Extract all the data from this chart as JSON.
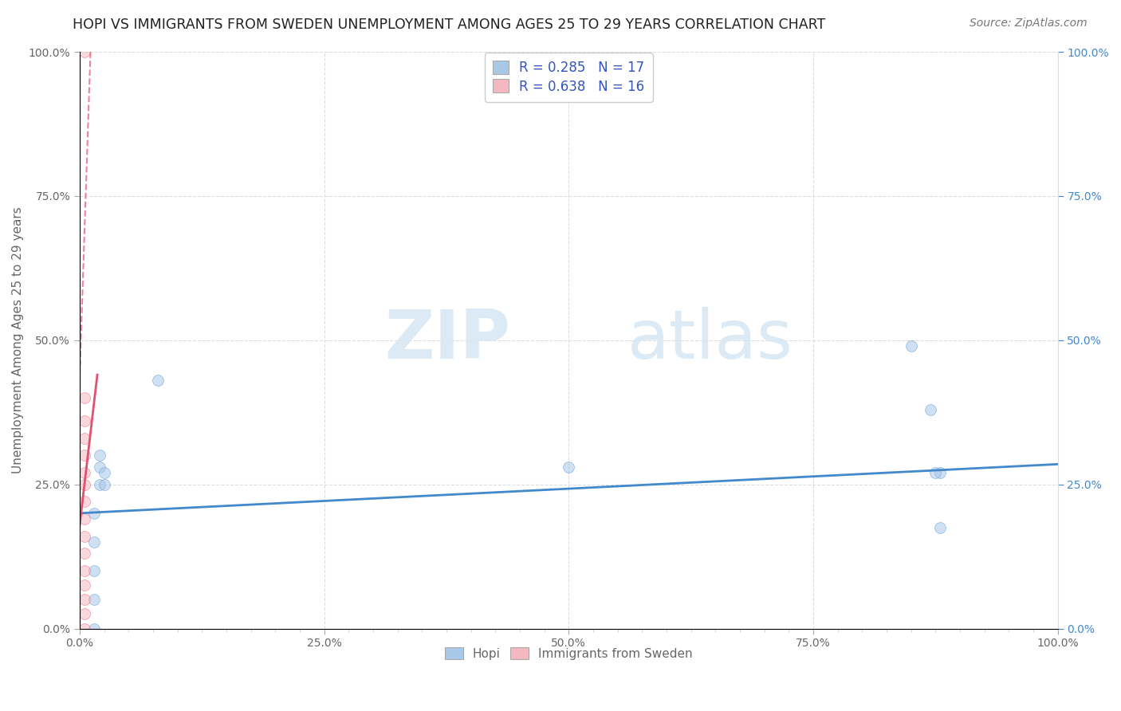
{
  "title": "HOPI VS IMMIGRANTS FROM SWEDEN UNEMPLOYMENT AMONG AGES 25 TO 29 YEARS CORRELATION CHART",
  "source": "Source: ZipAtlas.com",
  "ylabel": "Unemployment Among Ages 25 to 29 years",
  "xlabel": "",
  "xlim": [
    0.0,
    1.0
  ],
  "ylim": [
    0.0,
    1.0
  ],
  "xtick_labels": [
    "0.0%",
    "",
    "",
    "",
    "",
    "",
    "",
    "",
    "",
    "",
    "25.0%",
    "",
    "",
    "",
    "",
    "",
    "",
    "",
    "",
    "",
    "50.0%",
    "",
    "",
    "",
    "",
    "",
    "",
    "",
    "",
    "",
    "75.0%",
    "",
    "",
    "",
    "",
    "",
    "",
    "",
    "",
    "",
    "100.0%"
  ],
  "xtick_vals": [
    0.0,
    0.025,
    0.05,
    0.075,
    0.1,
    0.125,
    0.15,
    0.175,
    0.2,
    0.225,
    0.25,
    0.275,
    0.3,
    0.325,
    0.35,
    0.375,
    0.4,
    0.425,
    0.45,
    0.475,
    0.5,
    0.525,
    0.55,
    0.575,
    0.6,
    0.625,
    0.65,
    0.675,
    0.7,
    0.725,
    0.75,
    0.775,
    0.8,
    0.825,
    0.85,
    0.875,
    0.9,
    0.925,
    0.95,
    0.975,
    1.0
  ],
  "major_xtick_vals": [
    0.0,
    0.25,
    0.5,
    0.75,
    1.0
  ],
  "major_xtick_labels": [
    "0.0%",
    "25.0%",
    "50.0%",
    "75.0%",
    "100.0%"
  ],
  "major_ytick_vals": [
    0.0,
    0.25,
    0.5,
    0.75,
    1.0
  ],
  "major_ytick_labels": [
    "0.0%",
    "25.0%",
    "50.0%",
    "75.0%",
    "100.0%"
  ],
  "hopi_x": [
    0.015,
    0.015,
    0.015,
    0.015,
    0.015,
    0.02,
    0.02,
    0.02,
    0.025,
    0.025,
    0.08,
    0.5,
    0.85,
    0.87,
    0.88,
    0.88,
    0.875
  ],
  "hopi_y": [
    0.0,
    0.05,
    0.1,
    0.15,
    0.2,
    0.25,
    0.28,
    0.3,
    0.25,
    0.27,
    0.43,
    0.28,
    0.49,
    0.38,
    0.27,
    0.175,
    0.27
  ],
  "sweden_x": [
    0.005,
    0.005,
    0.005,
    0.005,
    0.005,
    0.005,
    0.005,
    0.005,
    0.005,
    0.005,
    0.005,
    0.005,
    0.005,
    0.005,
    0.005,
    0.005
  ],
  "sweden_y": [
    0.0,
    0.025,
    0.05,
    0.075,
    0.1,
    0.13,
    0.16,
    0.19,
    0.22,
    0.25,
    0.27,
    0.3,
    0.33,
    0.36,
    0.4,
    1.0
  ],
  "hopi_color": "#a8c8e8",
  "sweden_color": "#f4b8c0",
  "hopi_line_color": "#4488cc",
  "sweden_line_color": "#e05070",
  "hopi_R": 0.285,
  "hopi_N": 17,
  "sweden_R": 0.638,
  "sweden_N": 16,
  "legend_label_hopi": "Hopi",
  "legend_label_sweden": "Immigrants from Sweden",
  "watermark_zip": "ZIP",
  "watermark_atlas": "atlas",
  "background_color": "#ffffff",
  "grid_color": "#dddddd",
  "title_color": "#222222",
  "axis_color": "#666666",
  "legend_text_color": "#3355bb",
  "right_axis_color": "#4488cc",
  "marker_size": 10,
  "marker_alpha": 0.55,
  "title_fontsize": 12.5,
  "source_fontsize": 10,
  "axis_label_fontsize": 11,
  "tick_fontsize": 10
}
